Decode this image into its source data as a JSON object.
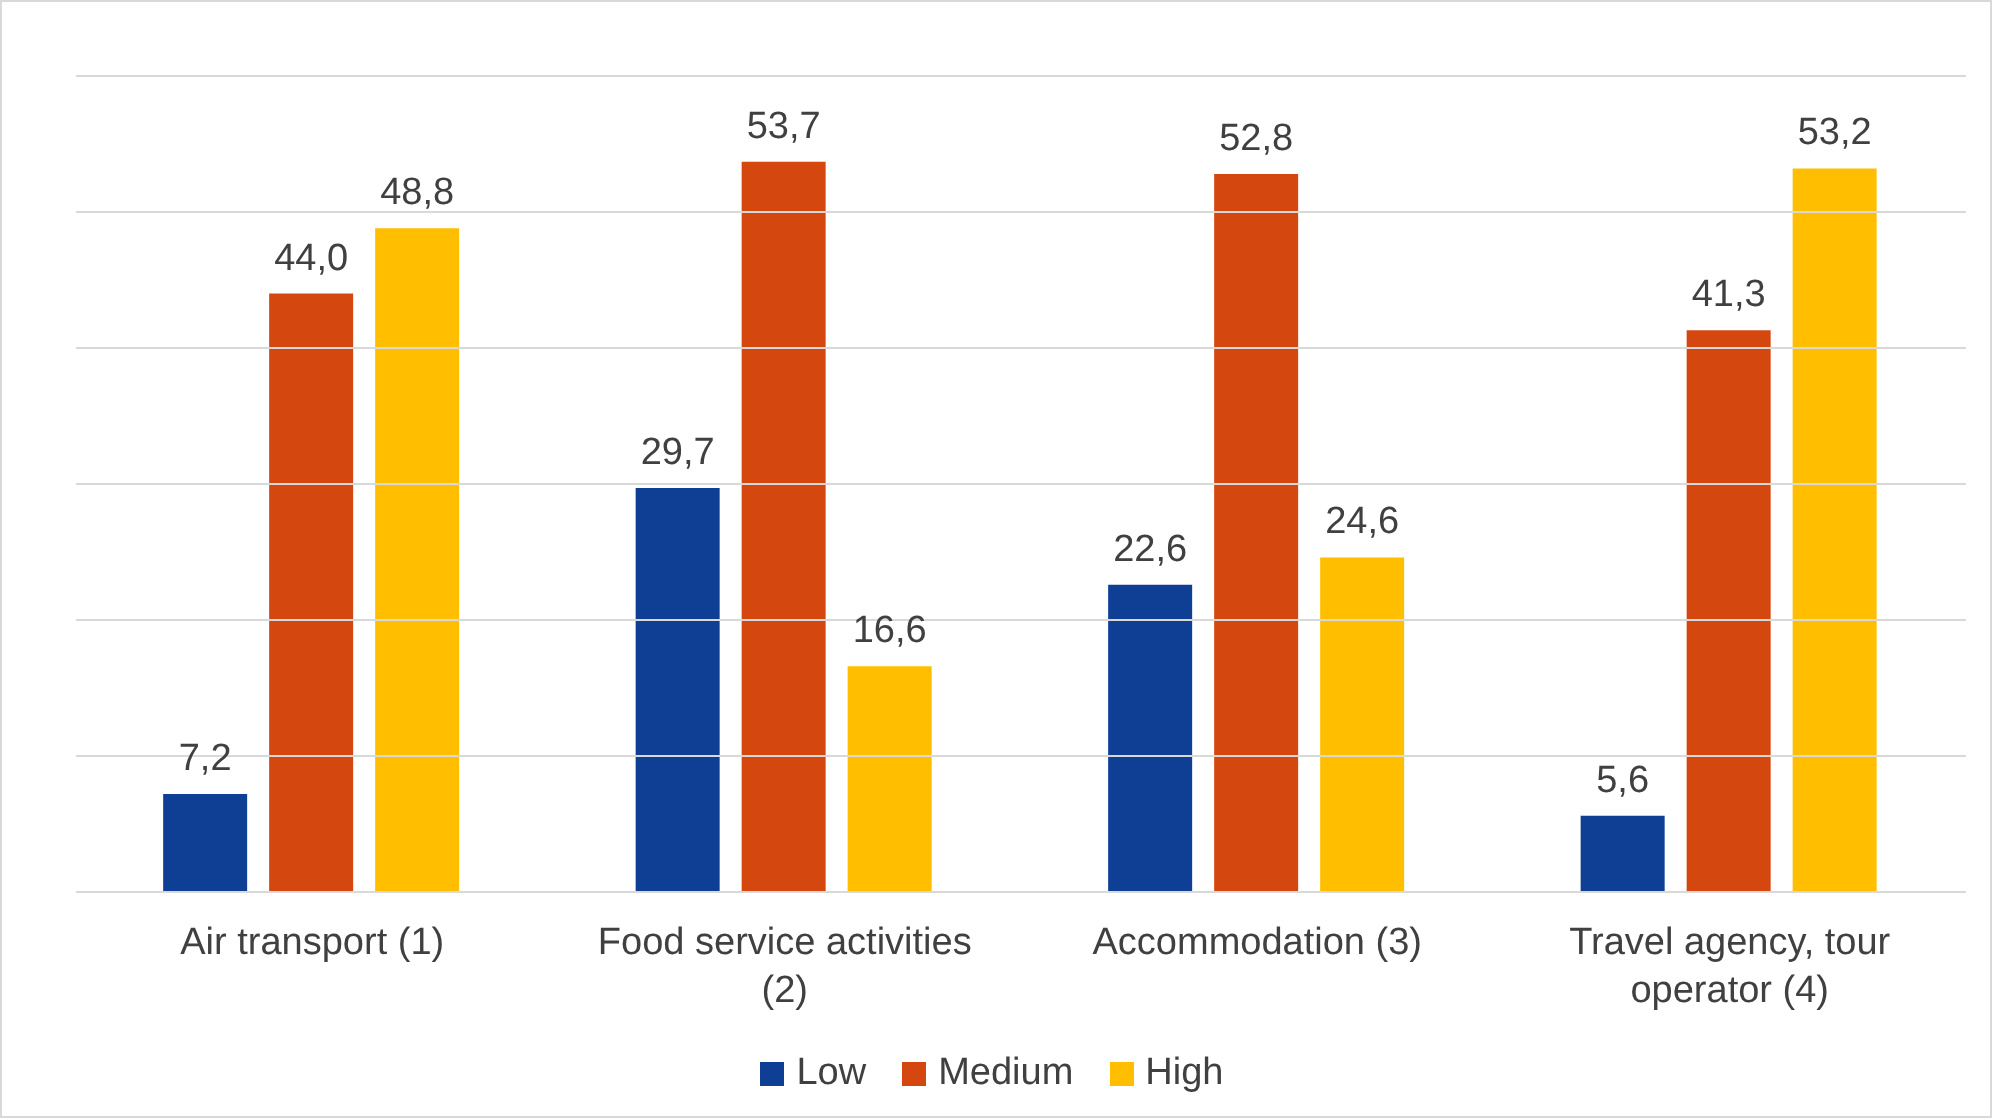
{
  "chart_data": {
    "type": "bar",
    "categories": [
      "Air transport (1)",
      "Food service activities (2)",
      "Accommodation (3)",
      "Travel agency, tour operator (4)"
    ],
    "series": [
      {
        "name": "Low",
        "color": "#0e3f94",
        "values": [
          7.2,
          29.7,
          22.6,
          5.6
        ],
        "value_labels": [
          "7,2",
          "29,7",
          "22,6",
          "5,6"
        ]
      },
      {
        "name": "Medium",
        "color": "#d4470f",
        "values": [
          44.0,
          53.7,
          52.8,
          41.3
        ],
        "value_labels": [
          "44,0",
          "53,7",
          "52,8",
          "41,3"
        ]
      },
      {
        "name": "High",
        "color": "#ffbf00",
        "values": [
          48.8,
          16.6,
          24.6,
          53.2
        ],
        "value_labels": [
          "48,8",
          "16,6",
          "24,6",
          "53,2"
        ]
      }
    ],
    "ylim": [
      0,
      60
    ],
    "yticks": [
      {
        "value": 0,
        "label": null
      },
      {
        "value": 10,
        "label": null
      },
      {
        "value": 20,
        "label": null
      },
      {
        "value": 30,
        "label": null
      },
      {
        "value": 40,
        "label": null
      },
      {
        "value": 50,
        "label": null
      },
      {
        "value": 60,
        "label": null
      }
    ],
    "grid": "y",
    "legend": "bottom",
    "tick_labels": "x"
  }
}
